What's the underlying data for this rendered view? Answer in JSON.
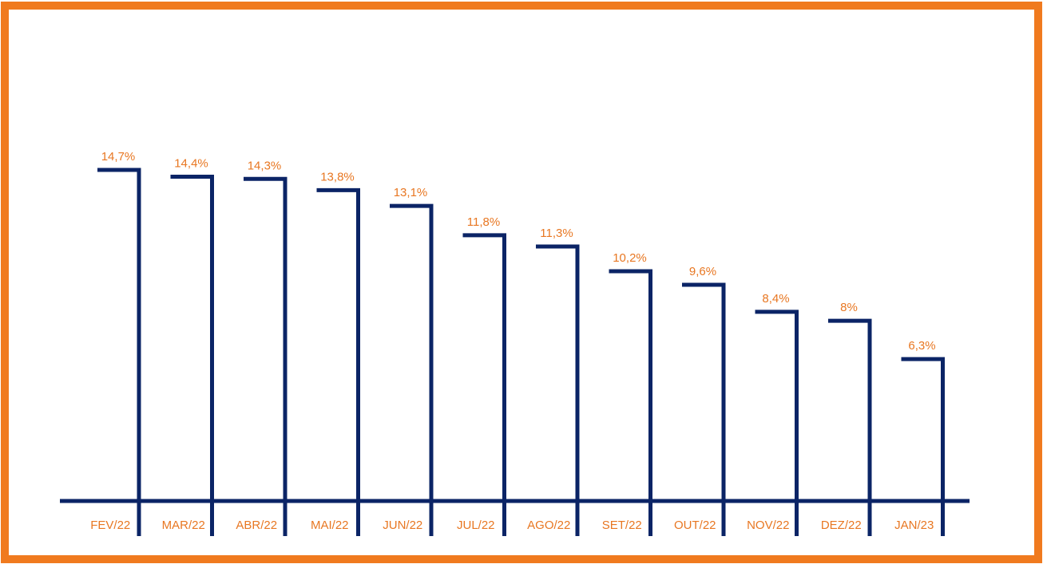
{
  "chart_data": {
    "type": "bar",
    "title": "",
    "xlabel": "",
    "ylabel": "",
    "categories": [
      "FEV/22",
      "MAR/22",
      "ABR/22",
      "MAI/22",
      "JUN/22",
      "JUL/22",
      "AGO/22",
      "SET/22",
      "OUT/22",
      "NOV/22",
      "DEZ/22",
      "JAN/23"
    ],
    "values": [
      14.7,
      14.4,
      14.3,
      13.8,
      13.1,
      11.8,
      11.3,
      10.2,
      9.6,
      8.4,
      8.0,
      6.3
    ],
    "value_labels": [
      "14,7%",
      "14,4%",
      "14,3%",
      "13,8%",
      "13,1%",
      "11,8%",
      "11,3%",
      "10,2%",
      "9,6%",
      "8,4%",
      "8%",
      "6,3%"
    ],
    "unit": "%",
    "grid": false,
    "legend": "none",
    "colors": {
      "frame": "#F07A1E",
      "bars": "#0B2466",
      "labels": "#E87722"
    }
  }
}
